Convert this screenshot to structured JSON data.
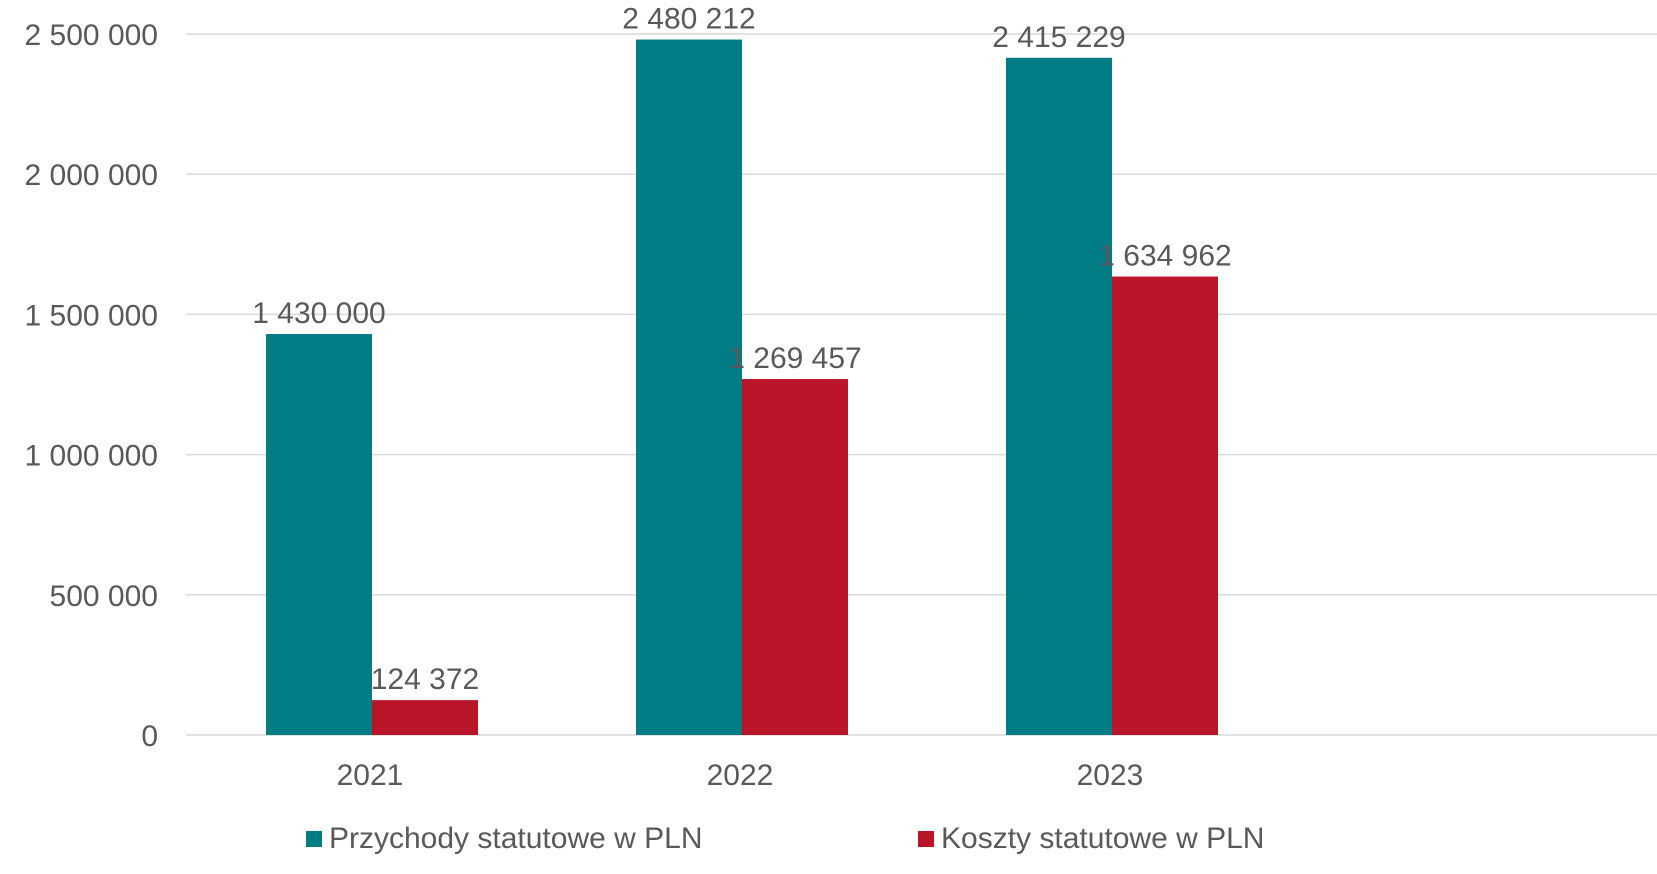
{
  "chart_data": {
    "type": "bar",
    "title": "",
    "xlabel": "",
    "ylabel": "",
    "categories": [
      "2021",
      "2022",
      "2023"
    ],
    "series": [
      {
        "name": "Przychody statutowe w PLN",
        "color": "#007C85",
        "values": [
          1430000,
          2480212,
          2415229
        ],
        "data_labels": [
          "1 430 000",
          "2 480 212",
          "2 415 229"
        ]
      },
      {
        "name": "Koszty statutowe w PLN",
        "color": "#BA1428",
        "values": [
          124372,
          1269457,
          1634962
        ],
        "data_labels": [
          "124 372",
          "1 269 457",
          "1 634 962"
        ]
      }
    ],
    "ylim": [
      0,
      2500000
    ],
    "yticks": [
      0,
      500000,
      1000000,
      1500000,
      2000000,
      2500000
    ],
    "ytick_labels": [
      "0",
      "500 000",
      "1 000 000",
      "1 500 000",
      "2 000 000",
      "2 500 000"
    ],
    "grid": true,
    "gridline_color": "#D9D9D9",
    "text_color": "#595959",
    "legend_position": "bottom"
  }
}
